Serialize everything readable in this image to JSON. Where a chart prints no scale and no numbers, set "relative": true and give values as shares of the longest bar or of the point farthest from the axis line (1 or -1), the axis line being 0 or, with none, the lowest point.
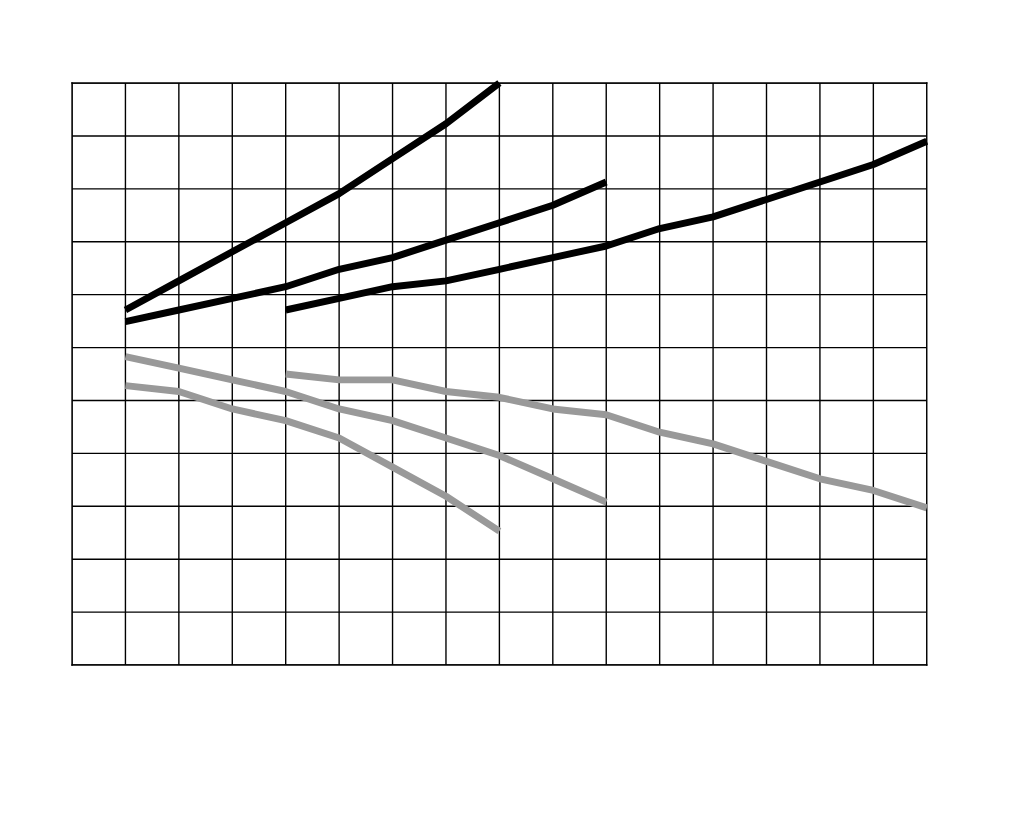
{
  "chart_data": {
    "type": "line",
    "relative": true,
    "grid": true,
    "legend": false,
    "marker": "none",
    "line_style": "solid",
    "categories": [
      null,
      null,
      null,
      null,
      null,
      null,
      null,
      null,
      null,
      null,
      null,
      null,
      null,
      null,
      null,
      null,
      null
    ],
    "series": [
      {
        "color": "#000000",
        "values": [
          null,
          0.61,
          0.66,
          0.71,
          0.76,
          0.81,
          0.87,
          0.93,
          1.0,
          null,
          null,
          null,
          null,
          null,
          null,
          null,
          null
        ]
      },
      {
        "color": "#000000",
        "values": [
          null,
          0.59,
          0.61,
          0.63,
          0.65,
          0.68,
          0.7,
          0.73,
          0.76,
          0.79,
          0.83,
          null,
          null,
          null,
          null,
          null,
          null
        ]
      },
      {
        "color": "#000000",
        "values": [
          null,
          null,
          null,
          null,
          0.61,
          0.63,
          0.65,
          0.66,
          0.68,
          0.7,
          0.72,
          0.75,
          0.77,
          0.8,
          0.83,
          0.86,
          0.9
        ]
      },
      {
        "color": "#999999",
        "values": [
          null,
          0.48,
          0.47,
          0.44,
          0.42,
          0.39,
          0.34,
          0.29,
          0.23,
          null,
          null,
          null,
          null,
          null,
          null,
          null,
          null
        ]
      },
      {
        "color": "#999999",
        "values": [
          null,
          0.53,
          0.51,
          0.49,
          0.47,
          0.44,
          0.42,
          0.39,
          0.36,
          0.32,
          0.28,
          null,
          null,
          null,
          null,
          null,
          null
        ]
      },
      {
        "color": "#999999",
        "values": [
          null,
          null,
          null,
          null,
          0.5,
          0.49,
          0.49,
          0.47,
          0.46,
          0.44,
          0.43,
          0.4,
          0.38,
          0.35,
          0.32,
          0.3,
          0.27
        ]
      }
    ]
  }
}
